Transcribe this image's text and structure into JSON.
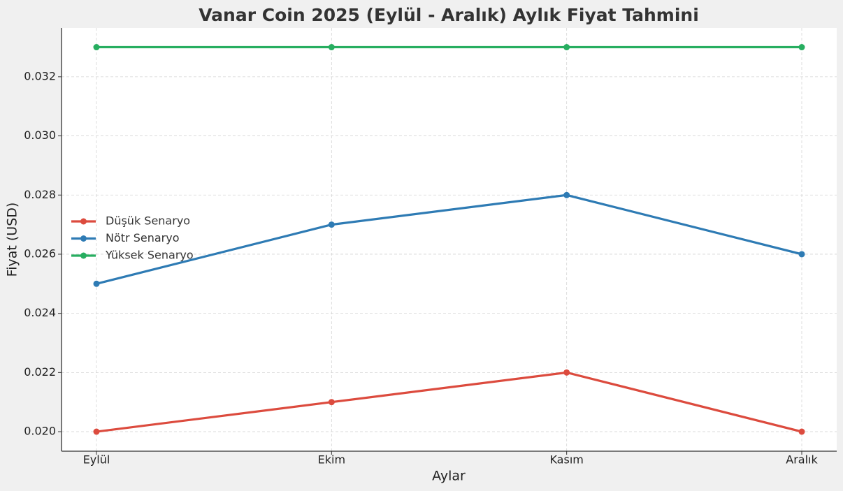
{
  "chart_data": {
    "type": "line",
    "title": "Vanar Coin 2025 (Eylül - Aralık) Aylık Fiyat Tahmini",
    "x_label": "Aylar",
    "y_label": "Fiyat (USD)",
    "categories": [
      "Eylül",
      "Ekim",
      "Kasım",
      "Aralık"
    ],
    "series": [
      {
        "name": "Düşük Senaryo",
        "color": "#dc4b3e",
        "values": [
          0.02,
          0.021,
          0.022,
          0.02
        ]
      },
      {
        "name": "Nötr Senaryo",
        "color": "#2e7bb4",
        "values": [
          0.025,
          0.027,
          0.028,
          0.026
        ]
      },
      {
        "name": "Yüksek Senaryo",
        "color": "#27ae60",
        "values": [
          0.033,
          0.033,
          0.033,
          0.033
        ]
      }
    ],
    "ylim": [
      0.01934,
      0.03365
    ],
    "yticks": [
      {
        "value": 0.02,
        "label": "0.020"
      },
      0.022,
      0.024,
      0.026,
      0.028,
      {
        "value": 0.03,
        "label": "0.030"
      },
      0.032
    ],
    "grid": true,
    "legend": "center left"
  }
}
